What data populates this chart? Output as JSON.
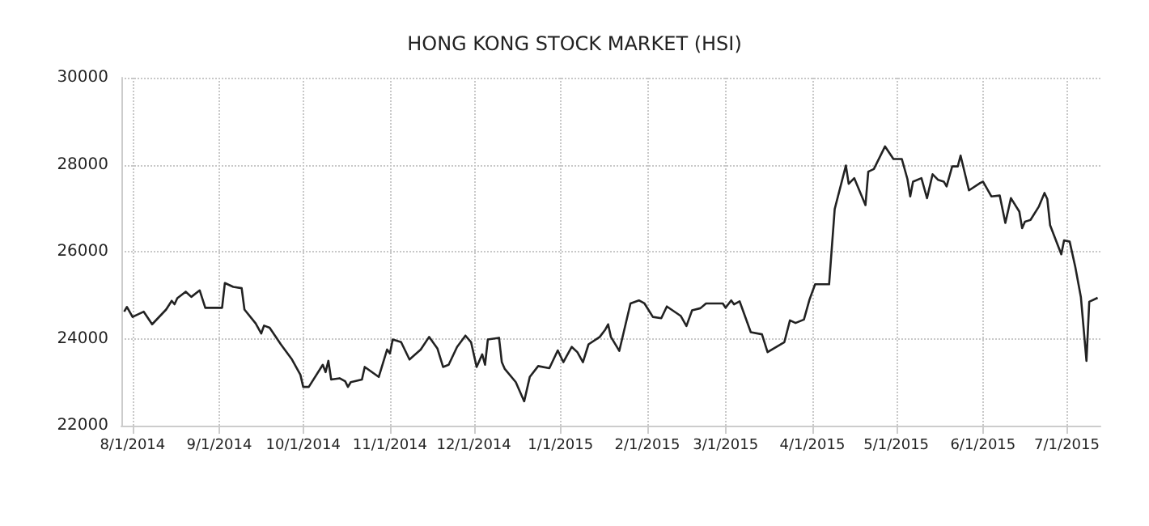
{
  "chart_data": {
    "type": "line",
    "title": "HONG KONG STOCK MARKET (HSI)",
    "x": [
      "2014-07-29",
      "2014-07-30",
      "2014-08-01",
      "2014-08-05",
      "2014-08-08",
      "2014-08-13",
      "2014-08-15",
      "2014-08-16",
      "2014-08-17",
      "2014-08-20",
      "2014-08-22",
      "2014-08-25",
      "2014-08-27",
      "2014-09-02",
      "2014-09-03",
      "2014-09-06",
      "2014-09-09",
      "2014-09-10",
      "2014-09-14",
      "2014-09-16",
      "2014-09-17",
      "2014-09-19",
      "2014-09-23",
      "2014-09-27",
      "2014-09-30",
      "2014-10-01",
      "2014-10-03",
      "2014-10-08",
      "2014-10-09",
      "2014-10-10",
      "2014-10-11",
      "2014-10-14",
      "2014-10-16",
      "2014-10-17",
      "2014-10-18",
      "2014-10-22",
      "2014-10-23",
      "2014-10-28",
      "2014-10-31",
      "2014-11-01",
      "2014-11-02",
      "2014-11-05",
      "2014-11-08",
      "2014-11-12",
      "2014-11-15",
      "2014-11-18",
      "2014-11-20",
      "2014-11-22",
      "2014-11-25",
      "2014-11-28",
      "2014-11-30",
      "2014-12-02",
      "2014-12-04",
      "2014-12-05",
      "2014-12-06",
      "2014-12-10",
      "2014-12-11",
      "2014-12-12",
      "2014-12-16",
      "2014-12-19",
      "2014-12-21",
      "2014-12-24",
      "2014-12-28",
      "2014-12-31",
      "2015-01-02",
      "2015-01-03",
      "2015-01-05",
      "2015-01-07",
      "2015-01-09",
      "2015-01-11",
      "2015-01-15",
      "2015-01-17",
      "2015-01-18",
      "2015-01-19",
      "2015-01-22",
      "2015-01-26",
      "2015-01-29",
      "2015-01-31",
      "2015-02-03",
      "2015-02-06",
      "2015-02-08",
      "2015-02-13",
      "2015-02-15",
      "2015-02-17",
      "2015-02-20",
      "2015-02-22",
      "2015-02-28",
      "2015-03-01",
      "2015-03-03",
      "2015-03-04",
      "2015-03-06",
      "2015-03-10",
      "2015-03-14",
      "2015-03-16",
      "2015-03-22",
      "2015-03-24",
      "2015-03-26",
      "2015-03-29",
      "2015-03-31",
      "2015-04-02",
      "2015-04-07",
      "2015-04-09",
      "2015-04-13",
      "2015-04-14",
      "2015-04-16",
      "2015-04-20",
      "2015-04-21",
      "2015-04-23",
      "2015-04-27",
      "2015-04-30",
      "2015-05-03",
      "2015-05-05",
      "2015-05-06",
      "2015-05-07",
      "2015-05-10",
      "2015-05-12",
      "2015-05-14",
      "2015-05-16",
      "2015-05-18",
      "2015-05-19",
      "2015-05-21",
      "2015-05-23",
      "2015-05-24",
      "2015-05-27",
      "2015-05-31",
      "2015-06-01",
      "2015-06-02",
      "2015-06-04",
      "2015-06-07",
      "2015-06-09",
      "2015-06-11",
      "2015-06-14",
      "2015-06-15",
      "2015-06-16",
      "2015-06-18",
      "2015-06-21",
      "2015-06-23",
      "2015-06-24",
      "2015-06-25",
      "2015-06-29",
      "2015-06-30",
      "2015-07-02",
      "2015-07-04",
      "2015-07-06",
      "2015-07-08",
      "2015-07-09",
      "2015-07-12"
    ],
    "series": [
      {
        "color": "#222222",
        "values": [
          24620,
          24730,
          24500,
          24620,
          24330,
          24670,
          24870,
          24790,
          24930,
          25080,
          24960,
          25110,
          24710,
          24710,
          25280,
          25190,
          25160,
          24670,
          24350,
          24120,
          24300,
          24250,
          23870,
          23520,
          23170,
          22890,
          22890,
          23400,
          23230,
          23490,
          23060,
          23090,
          23020,
          22890,
          23000,
          23060,
          23350,
          23120,
          23750,
          23660,
          23980,
          23920,
          23520,
          23750,
          24040,
          23770,
          23350,
          23400,
          23810,
          24070,
          23920,
          23350,
          23640,
          23400,
          23980,
          24020,
          23460,
          23310,
          23000,
          22560,
          23120,
          23370,
          23320,
          23730,
          23460,
          23580,
          23810,
          23690,
          23460,
          23870,
          24040,
          24210,
          24330,
          24040,
          23720,
          24810,
          24880,
          24810,
          24500,
          24470,
          24740,
          24520,
          24290,
          24650,
          24700,
          24810,
          24810,
          24710,
          24880,
          24790,
          24860,
          24150,
          24100,
          23690,
          23920,
          24420,
          24360,
          24440,
          24900,
          25250,
          25250,
          26980,
          27980,
          27560,
          27690,
          27070,
          27840,
          27900,
          28420,
          28130,
          28130,
          27670,
          27270,
          27610,
          27690,
          27230,
          27780,
          27650,
          27610,
          27500,
          27960,
          27960,
          28210,
          27410,
          27580,
          27610,
          27500,
          27270,
          27290,
          26660,
          27230,
          26920,
          26540,
          26690,
          26730,
          27040,
          27350,
          27210,
          26610,
          25940,
          26260,
          26230,
          25650,
          24960,
          23490,
          24850,
          24940
        ]
      }
    ],
    "xlim": [
      "2014-07-28",
      "2015-07-13"
    ],
    "xticks": [
      {
        "value": "2014-08-01",
        "label": "8/1/2014"
      },
      {
        "value": "2014-09-01",
        "label": "9/1/2014"
      },
      {
        "value": "2014-10-01",
        "label": "10/1/2014"
      },
      {
        "value": "2014-11-01",
        "label": "11/1/2014"
      },
      {
        "value": "2014-12-01",
        "label": "12/1/2014"
      },
      {
        "value": "2015-01-01",
        "label": "1/1/2015"
      },
      {
        "value": "2015-02-01",
        "label": "2/1/2015"
      },
      {
        "value": "2015-03-01",
        "label": "3/1/2015"
      },
      {
        "value": "2015-04-01",
        "label": "4/1/2015"
      },
      {
        "value": "2015-05-01",
        "label": "5/1/2015"
      },
      {
        "value": "2015-06-01",
        "label": "6/1/2015"
      },
      {
        "value": "2015-07-01",
        "label": "7/1/2015"
      }
    ],
    "ylim": [
      22000,
      30000
    ],
    "yticks": [
      22000,
      24000,
      26000,
      28000,
      30000
    ],
    "grid": true,
    "line_style": "solid"
  }
}
